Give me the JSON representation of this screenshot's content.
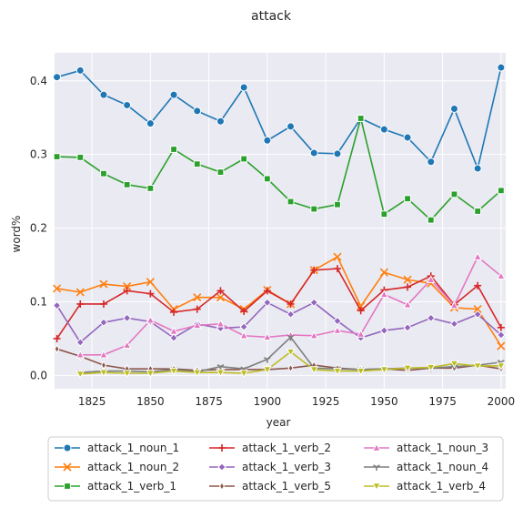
{
  "chart_data": {
    "type": "line",
    "title": "attack",
    "xlabel": "year",
    "ylabel": "word%",
    "xlim": [
      1809,
      2002
    ],
    "ylim": [
      -0.018,
      0.438
    ],
    "xticks": [
      1825,
      1850,
      1875,
      1900,
      1925,
      1950,
      1975,
      2000
    ],
    "yticks": [
      0.0,
      0.1,
      0.2,
      0.3,
      0.4
    ],
    "ytick_labels": [
      "0.0",
      "0.1",
      "0.2",
      "0.3",
      "0.4"
    ],
    "grid": true,
    "legend_position": "bottom",
    "x": [
      1810,
      1820,
      1830,
      1840,
      1850,
      1860,
      1870,
      1880,
      1890,
      1900,
      1910,
      1920,
      1930,
      1940,
      1950,
      1960,
      1970,
      1980,
      1990,
      2000
    ],
    "series": [
      {
        "name": "attack_1_noun_1",
        "color": "#1f77b4",
        "marker": "circle",
        "values": [
          0.405,
          0.414,
          0.381,
          0.367,
          0.342,
          0.381,
          0.359,
          0.345,
          0.391,
          0.319,
          0.338,
          0.302,
          0.301,
          0.349,
          0.334,
          0.323,
          0.29,
          0.362,
          0.281,
          0.418
        ]
      },
      {
        "name": "attack_1_noun_2",
        "color": "#ff7f0e",
        "marker": "x",
        "values": [
          0.118,
          0.113,
          0.124,
          0.121,
          0.127,
          0.09,
          0.106,
          0.106,
          0.09,
          0.116,
          0.097,
          0.143,
          0.161,
          0.094,
          0.14,
          0.13,
          0.125,
          0.092,
          0.09,
          0.04
        ]
      },
      {
        "name": "attack_1_verb_1",
        "color": "#2ca02c",
        "marker": "square",
        "values": [
          0.297,
          0.296,
          0.274,
          0.259,
          0.254,
          0.307,
          0.287,
          0.276,
          0.294,
          0.267,
          0.236,
          0.226,
          0.232,
          0.349,
          0.219,
          0.24,
          0.211,
          0.246,
          0.223,
          0.251
        ]
      },
      {
        "name": "attack_1_verb_2",
        "color": "#d62728",
        "marker": "plus",
        "values": [
          0.05,
          0.097,
          0.097,
          0.115,
          0.111,
          0.086,
          0.09,
          0.115,
          0.087,
          0.115,
          0.097,
          0.143,
          0.145,
          0.088,
          0.116,
          0.12,
          0.135,
          0.096,
          0.122,
          0.065
        ]
      },
      {
        "name": "attack_1_verb_3",
        "color": "#9467bd",
        "marker": "diamond",
        "values": [
          0.095,
          0.045,
          0.072,
          0.078,
          0.073,
          0.051,
          0.07,
          0.064,
          0.066,
          0.099,
          0.083,
          0.099,
          0.074,
          0.051,
          0.061,
          0.065,
          0.078,
          0.07,
          0.083,
          0.055
        ]
      },
      {
        "name": "attack_1_verb_5",
        "color": "#8c564b",
        "marker": "thin_diamond",
        "values": [
          0.036,
          0.026,
          0.014,
          0.009,
          0.009,
          0.009,
          0.007,
          0.008,
          0.008,
          0.008,
          0.01,
          0.014,
          0.01,
          0.008,
          0.009,
          0.007,
          0.01,
          0.01,
          0.014,
          0.009
        ]
      },
      {
        "name": "attack_1_noun_3",
        "color": "#e377c2",
        "marker": "triangle-up",
        "values": [
          null,
          0.028,
          0.028,
          0.041,
          0.075,
          0.06,
          0.068,
          0.07,
          0.054,
          0.052,
          0.055,
          0.054,
          0.061,
          0.056,
          0.11,
          0.096,
          0.13,
          0.095,
          0.161,
          0.135
        ]
      },
      {
        "name": "attack_1_noun_4",
        "color": "#7f7f7f",
        "marker": "tri_down",
        "values": [
          null,
          0.004,
          0.006,
          0.006,
          0.005,
          0.008,
          0.005,
          0.012,
          0.009,
          0.022,
          0.052,
          0.01,
          0.009,
          0.008,
          0.009,
          0.01,
          0.01,
          0.012,
          0.014,
          0.018
        ]
      },
      {
        "name": "attack_1_verb_4",
        "color": "#bcbd22",
        "marker": "triangle-down",
        "values": [
          null,
          0.002,
          0.004,
          0.003,
          0.003,
          0.006,
          0.004,
          0.004,
          0.003,
          0.008,
          0.032,
          0.008,
          0.006,
          0.006,
          0.008,
          0.01,
          0.011,
          0.016,
          0.013,
          0.013
        ]
      }
    ]
  }
}
